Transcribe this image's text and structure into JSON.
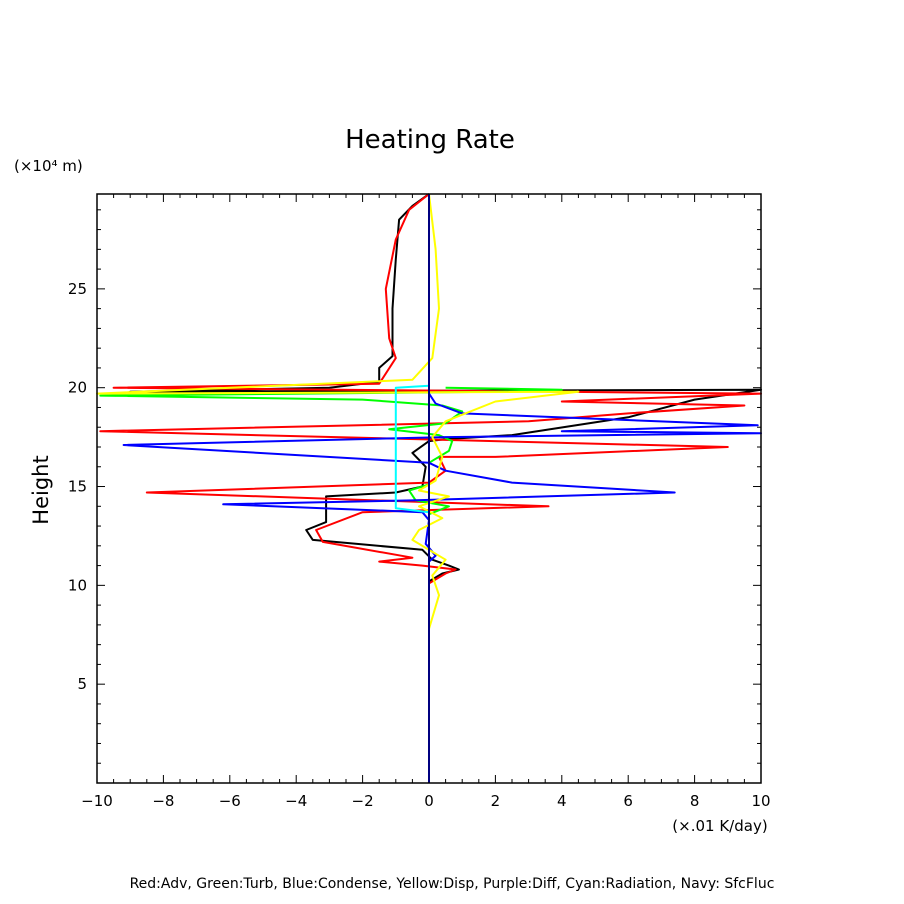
{
  "chart_data": {
    "type": "line",
    "title": "Heating Rate",
    "ylabel": "Height",
    "y_units": "(×10⁴ m)",
    "x_units": "(×.01 K/day)",
    "xlim": [
      -10,
      10
    ],
    "ylim": [
      0,
      29.8
    ],
    "x_ticks": [
      -10,
      -8,
      -6,
      -4,
      -2,
      0,
      2,
      4,
      6,
      8,
      10
    ],
    "x_tick_labels": [
      "−10",
      "−8",
      "−6",
      "−4",
      "−2",
      "0",
      "2",
      "4",
      "6",
      "8",
      "10"
    ],
    "y_ticks": [
      5,
      10,
      15,
      20,
      25
    ],
    "y_tick_labels": [
      "5",
      "10",
      "15",
      "20",
      "25"
    ],
    "grid": false,
    "caption": "Red:Adv, Green:Turb, Blue:Condense, Yellow:Disp, Purple:Diff, Cyan:Radiation, Navy: SfcFluc",
    "series": [
      {
        "color": "#000000",
        "points": [
          [
            0,
            10.2
          ],
          [
            0.4,
            10.6
          ],
          [
            0.9,
            10.8
          ],
          [
            0.6,
            11.0
          ],
          [
            0.1,
            11.3
          ],
          [
            -0.2,
            11.8
          ],
          [
            -3.5,
            12.3
          ],
          [
            -3.7,
            12.8
          ],
          [
            -3.1,
            13.2
          ],
          [
            -3.1,
            14.5
          ],
          [
            -1.0,
            14.7
          ],
          [
            -0.2,
            15.0
          ],
          [
            -0.1,
            16.0
          ],
          [
            -0.5,
            16.7
          ],
          [
            0.0,
            17.3
          ],
          [
            0.5,
            17.4
          ],
          [
            2.5,
            17.6
          ],
          [
            6.0,
            18.5
          ],
          [
            8.0,
            19.4
          ],
          [
            10.0,
            19.9
          ],
          [
            -9.0,
            19.8
          ],
          [
            -3.0,
            20.0
          ],
          [
            -1.5,
            20.3
          ],
          [
            -1.5,
            21.0
          ],
          [
            -1.1,
            21.6
          ],
          [
            -1.1,
            24.0
          ],
          [
            -1.0,
            26.5
          ],
          [
            -0.9,
            28.5
          ],
          [
            -0.5,
            29.2
          ],
          [
            0,
            29.8
          ]
        ]
      },
      {
        "color": "#ff0000",
        "points": [
          [
            0,
            10.1
          ],
          [
            0.5,
            10.6
          ],
          [
            0.8,
            10.8
          ],
          [
            -0.2,
            11.0
          ],
          [
            -1.5,
            11.2
          ],
          [
            -0.5,
            11.4
          ],
          [
            -3.2,
            12.2
          ],
          [
            -3.4,
            12.8
          ],
          [
            -2.0,
            13.7
          ],
          [
            3.6,
            14.0
          ],
          [
            -8.5,
            14.7
          ],
          [
            0.0,
            15.2
          ],
          [
            0.5,
            15.8
          ],
          [
            0.3,
            16.5
          ],
          [
            2.0,
            16.5
          ],
          [
            9.0,
            17.0
          ],
          [
            -9.9,
            17.8
          ],
          [
            3.0,
            18.3
          ],
          [
            6.0,
            18.7
          ],
          [
            9.5,
            19.1
          ],
          [
            4.0,
            19.3
          ],
          [
            10.0,
            19.7
          ],
          [
            -9.5,
            20.0
          ],
          [
            -1.5,
            20.2
          ],
          [
            -1.0,
            21.5
          ],
          [
            -1.2,
            22.5
          ],
          [
            -1.3,
            25.0
          ],
          [
            -1.0,
            27.5
          ],
          [
            -0.6,
            29.0
          ],
          [
            0,
            29.8
          ]
        ]
      },
      {
        "color": "#00ff00",
        "points": [
          [
            0,
            13.4
          ],
          [
            0,
            13.6
          ],
          [
            0.6,
            14.0
          ],
          [
            -0.4,
            14.3
          ],
          [
            -0.6,
            14.8
          ],
          [
            0,
            15.1
          ],
          [
            0,
            16.2
          ],
          [
            0.6,
            16.8
          ],
          [
            0.7,
            17.3
          ],
          [
            0.3,
            17.6
          ],
          [
            -1.2,
            17.9
          ],
          [
            0.5,
            18.2
          ],
          [
            1.0,
            18.8
          ],
          [
            0.4,
            19.1
          ],
          [
            -2.0,
            19.4
          ],
          [
            -9.9,
            19.6
          ],
          [
            2.0,
            19.8
          ],
          [
            4.0,
            19.9
          ],
          [
            0.5,
            20.0
          ]
        ]
      },
      {
        "color": "#0000ff",
        "points": [
          [
            0,
            10.8
          ],
          [
            0,
            11.2
          ],
          [
            0.2,
            11.5
          ],
          [
            -0.1,
            12.1
          ],
          [
            0,
            13.3
          ],
          [
            -0.2,
            13.7
          ],
          [
            -6.2,
            14.1
          ],
          [
            -0.5,
            14.3
          ],
          [
            7.4,
            14.7
          ],
          [
            2.5,
            15.2
          ],
          [
            0.5,
            15.8
          ],
          [
            0,
            16.2
          ],
          [
            -9.2,
            17.1
          ],
          [
            0.5,
            17.5
          ],
          [
            10.0,
            17.7
          ],
          [
            4.0,
            17.8
          ],
          [
            9.9,
            18.1
          ],
          [
            1.0,
            18.7
          ],
          [
            0.2,
            19.2
          ],
          [
            0,
            19.7
          ],
          [
            0,
            20.0
          ]
        ]
      },
      {
        "color": "#ffff00",
        "points": [
          [
            0,
            7.8
          ],
          [
            0.3,
            9.5
          ],
          [
            0.1,
            10.5
          ],
          [
            0.5,
            11.3
          ],
          [
            0,
            11.8
          ],
          [
            -0.5,
            12.3
          ],
          [
            -0.3,
            12.8
          ],
          [
            0.4,
            13.4
          ],
          [
            -0.3,
            14.0
          ],
          [
            0.6,
            14.5
          ],
          [
            -0.3,
            14.8
          ],
          [
            0.2,
            15.3
          ],
          [
            0.4,
            16.5
          ],
          [
            0.1,
            17.5
          ],
          [
            0.5,
            18.3
          ],
          [
            2.0,
            19.3
          ],
          [
            4.5,
            19.8
          ],
          [
            -10.0,
            19.7
          ],
          [
            -0.5,
            20.4
          ],
          [
            0.1,
            21.5
          ],
          [
            0.3,
            24.0
          ],
          [
            0.2,
            27.0
          ],
          [
            0,
            29.8
          ]
        ]
      },
      {
        "color": "#00ffff",
        "points": [
          [
            0,
            13.7
          ],
          [
            -1.0,
            13.9
          ],
          [
            -1.0,
            20.0
          ],
          [
            0,
            20.1
          ]
        ]
      },
      {
        "color": "#000080",
        "points": [
          [
            0,
            0
          ],
          [
            0,
            29.8
          ]
        ]
      }
    ]
  }
}
